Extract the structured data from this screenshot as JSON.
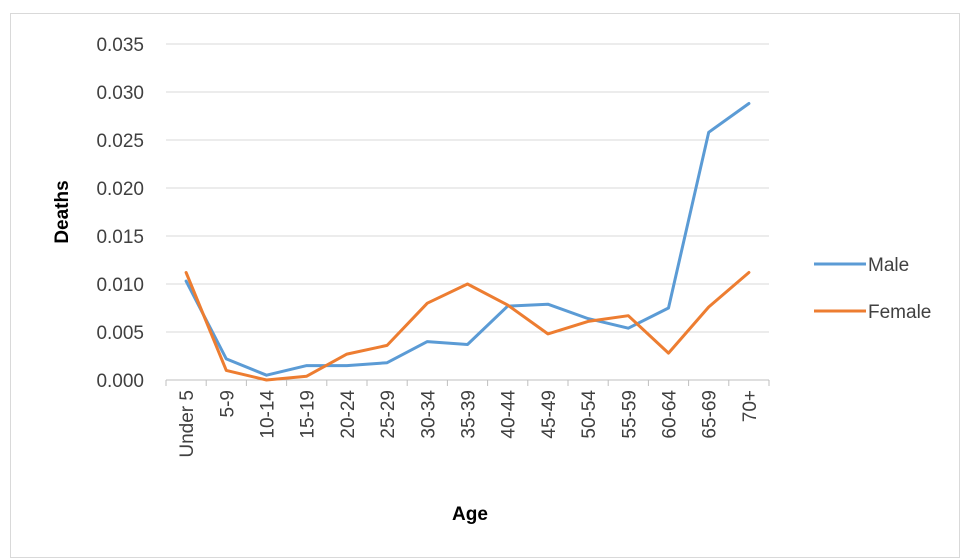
{
  "chart_data": {
    "type": "line",
    "title": "",
    "xlabel": "Age",
    "ylabel": "Deaths",
    "ylim": [
      0,
      0.035
    ],
    "yticks": [
      "0.000",
      "0.005",
      "0.010",
      "0.015",
      "0.020",
      "0.025",
      "0.030",
      "0.035"
    ],
    "grid": true,
    "legend_position": "right",
    "categories": [
      "Under 5",
      "5-9",
      "10-14",
      "15-19",
      "20-24",
      "25-29",
      "30-34",
      "35-39",
      "40-44",
      "45-49",
      "50-54",
      "55-59",
      "60-64",
      "65-69",
      "70+"
    ],
    "series": [
      {
        "name": "Male",
        "color": "#5b9bd5",
        "values": [
          0.0103,
          0.0022,
          0.0005,
          0.0015,
          0.0015,
          0.0018,
          0.004,
          0.0037,
          0.0077,
          0.0079,
          0.0064,
          0.0054,
          0.0075,
          0.0258,
          0.0288
        ]
      },
      {
        "name": "Female",
        "color": "#ed7d31",
        "values": [
          0.0112,
          0.001,
          0.0,
          0.0004,
          0.0027,
          0.0036,
          0.008,
          0.01,
          0.0078,
          0.0048,
          0.0061,
          0.0067,
          0.0028,
          0.0076,
          0.0112
        ]
      }
    ]
  }
}
